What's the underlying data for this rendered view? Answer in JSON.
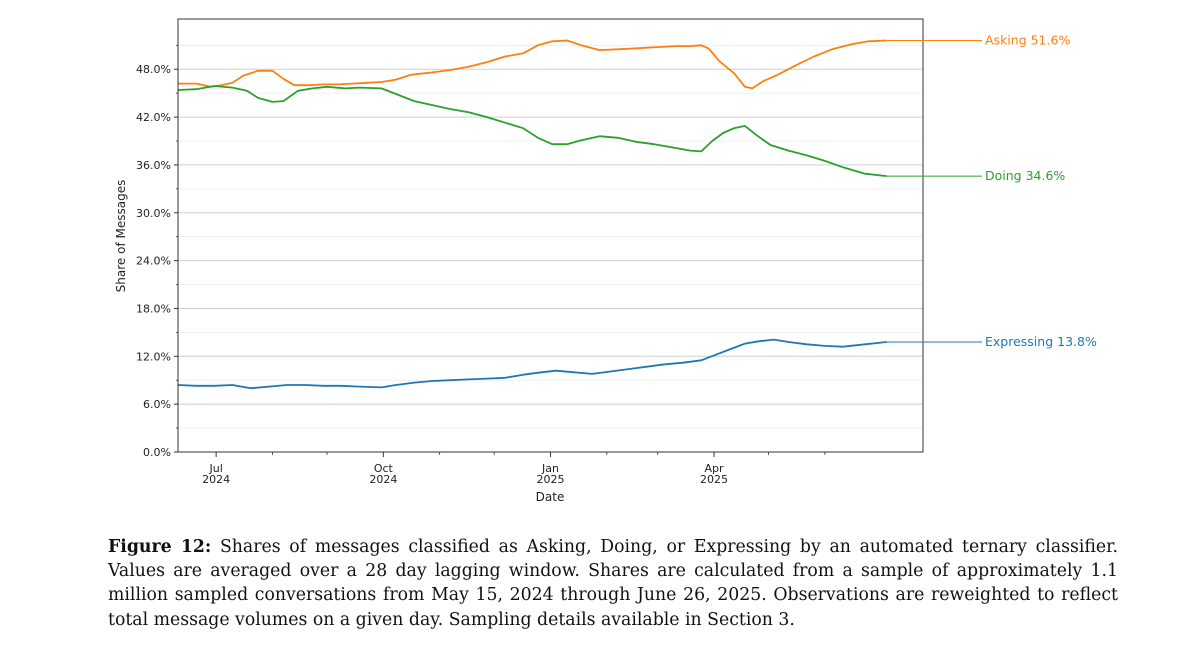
{
  "chart_data": {
    "type": "line",
    "title": "",
    "xlabel": "Date",
    "ylabel": "Share of Messages",
    "x_range_days": [
      0,
      410
    ],
    "ylim": [
      0,
      54.3
    ],
    "y_ticks": [
      {
        "value": 0,
        "label": "0.0%"
      },
      {
        "value": 6,
        "label": "6.0%"
      },
      {
        "value": 12,
        "label": "12.0%"
      },
      {
        "value": 18,
        "label": "18.0%"
      },
      {
        "value": 24,
        "label": "24.0%"
      },
      {
        "value": 30,
        "label": "30.0%"
      },
      {
        "value": 36,
        "label": "36.0%"
      },
      {
        "value": 42,
        "label": "42.0%"
      },
      {
        "value": 48,
        "label": "48.0%"
      }
    ],
    "y_minor_step": 3,
    "x_major_ticks": [
      {
        "day": 21,
        "label": "Jul",
        "sublabel": "2024"
      },
      {
        "day": 113,
        "label": "Oct",
        "sublabel": "2024"
      },
      {
        "day": 205,
        "label": "Jan",
        "sublabel": "2025"
      },
      {
        "day": 295,
        "label": "Apr",
        "sublabel": "2025"
      }
    ],
    "x_minor_ticks": [
      52,
      82,
      144,
      174,
      236,
      264,
      325,
      356
    ],
    "grid": true,
    "series": [
      {
        "name": "Asking",
        "end_label": "Asking  51.6%",
        "color": "#ff7f0e",
        "points": [
          [
            0,
            46.2
          ],
          [
            10,
            46.2
          ],
          [
            18,
            45.8
          ],
          [
            24,
            46.0
          ],
          [
            30,
            46.3
          ],
          [
            36,
            47.2
          ],
          [
            44,
            47.8
          ],
          [
            52,
            47.8
          ],
          [
            58,
            46.8
          ],
          [
            64,
            46.0
          ],
          [
            72,
            46.0
          ],
          [
            80,
            46.1
          ],
          [
            88,
            46.1
          ],
          [
            96,
            46.2
          ],
          [
            104,
            46.3
          ],
          [
            112,
            46.4
          ],
          [
            120,
            46.7
          ],
          [
            128,
            47.3
          ],
          [
            140,
            47.6
          ],
          [
            150,
            47.9
          ],
          [
            160,
            48.3
          ],
          [
            170,
            48.9
          ],
          [
            180,
            49.6
          ],
          [
            190,
            50.0
          ],
          [
            198,
            51.0
          ],
          [
            206,
            51.5
          ],
          [
            214,
            51.6
          ],
          [
            222,
            51.0
          ],
          [
            232,
            50.4
          ],
          [
            242,
            50.5
          ],
          [
            250,
            50.6
          ],
          [
            258,
            50.7
          ],
          [
            266,
            50.8
          ],
          [
            274,
            50.9
          ],
          [
            282,
            50.9
          ],
          [
            288,
            51.0
          ],
          [
            292,
            50.6
          ],
          [
            298,
            49.0
          ],
          [
            306,
            47.5
          ],
          [
            312,
            45.8
          ],
          [
            316,
            45.6
          ],
          [
            322,
            46.5
          ],
          [
            330,
            47.3
          ],
          [
            340,
            48.5
          ],
          [
            350,
            49.6
          ],
          [
            360,
            50.5
          ],
          [
            370,
            51.1
          ],
          [
            380,
            51.5
          ],
          [
            390,
            51.6
          ]
        ]
      },
      {
        "name": "Doing",
        "end_label": "Doing  34.6%",
        "color": "#2ca02c",
        "points": [
          [
            0,
            45.4
          ],
          [
            10,
            45.5
          ],
          [
            20,
            45.9
          ],
          [
            30,
            45.7
          ],
          [
            38,
            45.3
          ],
          [
            44,
            44.4
          ],
          [
            52,
            43.9
          ],
          [
            58,
            44.0
          ],
          [
            66,
            45.3
          ],
          [
            74,
            45.6
          ],
          [
            82,
            45.8
          ],
          [
            92,
            45.6
          ],
          [
            100,
            45.7
          ],
          [
            112,
            45.6
          ],
          [
            120,
            44.9
          ],
          [
            130,
            44.0
          ],
          [
            140,
            43.5
          ],
          [
            150,
            43.0
          ],
          [
            160,
            42.6
          ],
          [
            170,
            42.0
          ],
          [
            180,
            41.3
          ],
          [
            190,
            40.6
          ],
          [
            198,
            39.4
          ],
          [
            206,
            38.6
          ],
          [
            214,
            38.6
          ],
          [
            222,
            39.1
          ],
          [
            232,
            39.6
          ],
          [
            242,
            39.4
          ],
          [
            252,
            38.9
          ],
          [
            262,
            38.6
          ],
          [
            272,
            38.2
          ],
          [
            282,
            37.8
          ],
          [
            288,
            37.7
          ],
          [
            294,
            39.0
          ],
          [
            300,
            40.0
          ],
          [
            306,
            40.6
          ],
          [
            312,
            40.9
          ],
          [
            318,
            39.8
          ],
          [
            326,
            38.5
          ],
          [
            336,
            37.8
          ],
          [
            346,
            37.2
          ],
          [
            356,
            36.5
          ],
          [
            366,
            35.7
          ],
          [
            378,
            34.9
          ],
          [
            390,
            34.6
          ]
        ]
      },
      {
        "name": "Expressing",
        "end_label": "Expressing  13.8%",
        "color": "#1f77b4",
        "points": [
          [
            0,
            8.4
          ],
          [
            10,
            8.3
          ],
          [
            20,
            8.3
          ],
          [
            30,
            8.4
          ],
          [
            40,
            8.0
          ],
          [
            50,
            8.2
          ],
          [
            60,
            8.4
          ],
          [
            70,
            8.4
          ],
          [
            80,
            8.3
          ],
          [
            90,
            8.3
          ],
          [
            100,
            8.2
          ],
          [
            112,
            8.1
          ],
          [
            120,
            8.4
          ],
          [
            130,
            8.7
          ],
          [
            140,
            8.9
          ],
          [
            150,
            9.0
          ],
          [
            160,
            9.1
          ],
          [
            170,
            9.2
          ],
          [
            180,
            9.3
          ],
          [
            190,
            9.7
          ],
          [
            200,
            10.0
          ],
          [
            208,
            10.2
          ],
          [
            218,
            10.0
          ],
          [
            228,
            9.8
          ],
          [
            238,
            10.1
          ],
          [
            248,
            10.4
          ],
          [
            258,
            10.7
          ],
          [
            268,
            11.0
          ],
          [
            278,
            11.2
          ],
          [
            288,
            11.5
          ],
          [
            296,
            12.2
          ],
          [
            304,
            12.9
          ],
          [
            312,
            13.6
          ],
          [
            320,
            13.9
          ],
          [
            328,
            14.1
          ],
          [
            336,
            13.8
          ],
          [
            346,
            13.5
          ],
          [
            356,
            13.3
          ],
          [
            366,
            13.2
          ],
          [
            378,
            13.5
          ],
          [
            390,
            13.8
          ]
        ]
      }
    ]
  },
  "caption": {
    "label": "Figure 12:",
    "lines": [
      "Shares of messages classified as Asking, Doing, or Expressing by an automated ternary classifier.",
      "Values are averaged over a 28 day lagging window. Shares are calculated from a sample of approximately",
      "1.1 million sampled conversations from May 15, 2024 through June 26, 2025. Observations are reweighted to",
      "reflect total message volumes on a given day. Sampling details available in Section 3."
    ]
  }
}
